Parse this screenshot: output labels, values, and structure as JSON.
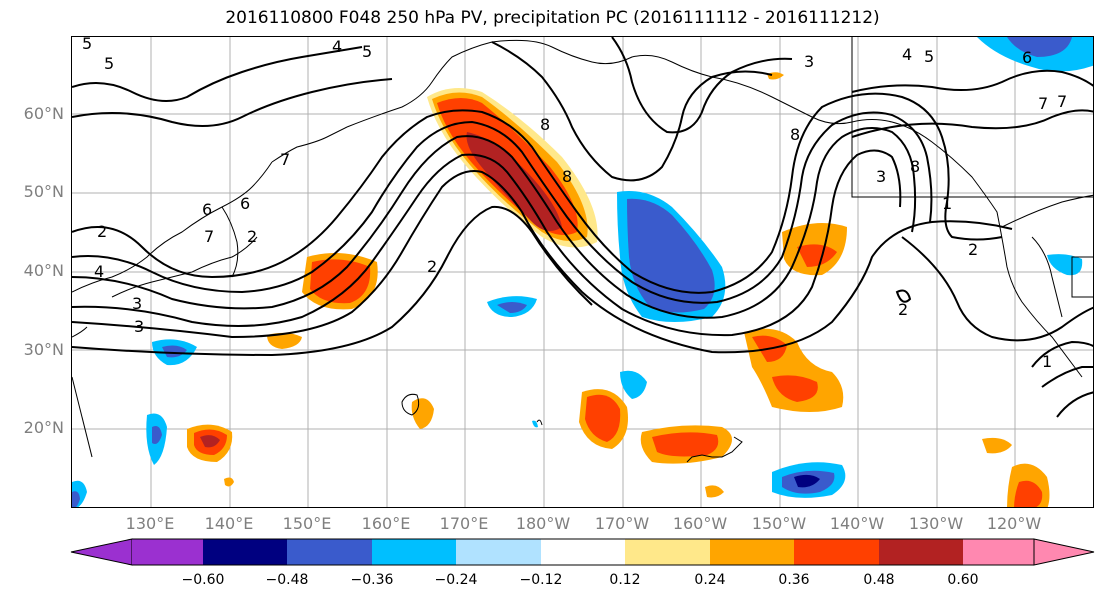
{
  "title": "2016110800 F048 250 hPa PV, precipitation PC (2016111112 - 2016111212)",
  "map": {
    "lat_labels": [
      "60°N",
      "50°N",
      "40°N",
      "30°N",
      "20°N"
    ],
    "lon_labels": [
      "130°E",
      "140°E",
      "150°E",
      "160°E",
      "170°E",
      "180°W",
      "170°W",
      "160°W",
      "150°W",
      "140°W",
      "130°W",
      "120°W"
    ],
    "contour_labels": [
      "5",
      "5",
      "4",
      "5",
      "5",
      "4",
      "6",
      "3",
      "7",
      "2",
      "6",
      "7",
      "6",
      "8",
      "8",
      "2",
      "4",
      "3",
      "2",
      "3",
      "8",
      "7",
      "8",
      "3",
      "1",
      "2",
      "2",
      "1",
      "7"
    ]
  },
  "colorbar": {
    "tick_labels": [
      "−0.60",
      "−0.48",
      "−0.36",
      "−0.24",
      "−0.12",
      "0.12",
      "0.24",
      "0.36",
      "0.48",
      "0.60"
    ],
    "colors": [
      "#9b30d0",
      "#000080",
      "#3a5bcc",
      "#00bfff",
      "#b0e2ff",
      "#ffffff",
      "#ffe88a",
      "#ffa500",
      "#ff4000",
      "#b22222",
      "#ff88b0"
    ]
  }
}
